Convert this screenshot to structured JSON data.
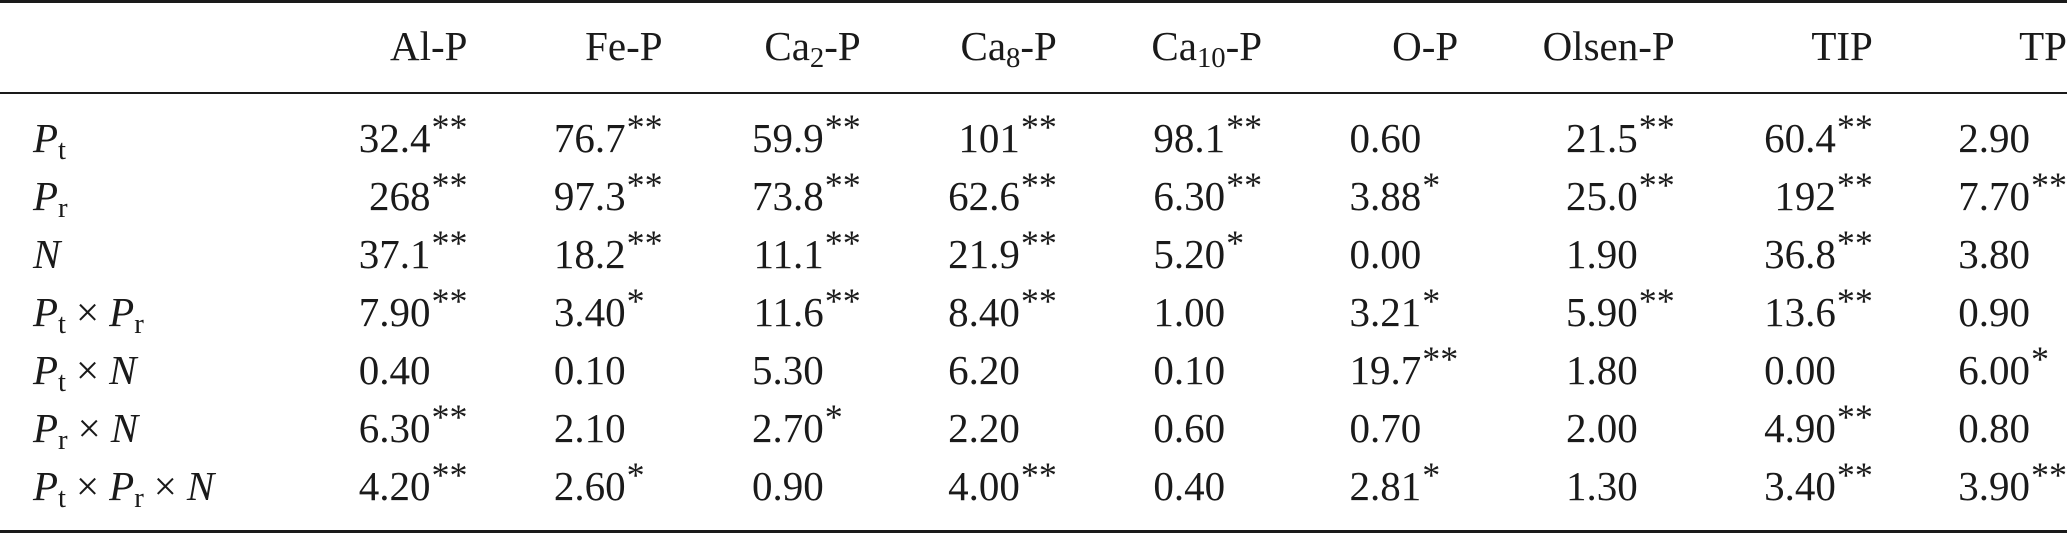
{
  "table": {
    "headers": [
      {
        "main": "Al-P",
        "sub": "",
        "tail": ""
      },
      {
        "main": "Fe-P",
        "sub": "",
        "tail": ""
      },
      {
        "main": "Ca",
        "sub": "2",
        "tail": "-P"
      },
      {
        "main": "Ca",
        "sub": "8",
        "tail": "-P"
      },
      {
        "main": "Ca",
        "sub": "10",
        "tail": "-P"
      },
      {
        "main": "O-P",
        "sub": "",
        "tail": ""
      },
      {
        "main": "Olsen-P",
        "sub": "",
        "tail": ""
      },
      {
        "main": "TIP",
        "sub": "",
        "tail": ""
      },
      {
        "main": "TP",
        "sub": "",
        "tail": ""
      }
    ],
    "rows": [
      {
        "label": [
          {
            "v": "P",
            "s": "t"
          }
        ],
        "cells": [
          {
            "v": "32.4",
            "sig": "**"
          },
          {
            "v": "76.7",
            "sig": "**"
          },
          {
            "v": "59.9",
            "sig": "**"
          },
          {
            "v": "101",
            "sig": "**"
          },
          {
            "v": "98.1",
            "sig": "**"
          },
          {
            "v": "0.60",
            "sig": ""
          },
          {
            "v": "21.5",
            "sig": "**"
          },
          {
            "v": "60.4",
            "sig": "**"
          },
          {
            "v": "2.90",
            "sig": ""
          }
        ]
      },
      {
        "label": [
          {
            "v": "P",
            "s": "r"
          }
        ],
        "cells": [
          {
            "v": "268",
            "sig": "**"
          },
          {
            "v": "97.3",
            "sig": "**"
          },
          {
            "v": "73.8",
            "sig": "**"
          },
          {
            "v": "62.6",
            "sig": "**"
          },
          {
            "v": "6.30",
            "sig": "**"
          },
          {
            "v": "3.88",
            "sig": "*"
          },
          {
            "v": "25.0",
            "sig": "**"
          },
          {
            "v": "192",
            "sig": "**"
          },
          {
            "v": "7.70",
            "sig": "**"
          }
        ]
      },
      {
        "label": [
          {
            "v": "N",
            "s": ""
          }
        ],
        "cells": [
          {
            "v": "37.1",
            "sig": "**"
          },
          {
            "v": "18.2",
            "sig": "**"
          },
          {
            "v": "11.1",
            "sig": "**"
          },
          {
            "v": "21.9",
            "sig": "**"
          },
          {
            "v": "5.20",
            "sig": "*"
          },
          {
            "v": "0.00",
            "sig": ""
          },
          {
            "v": "1.90",
            "sig": ""
          },
          {
            "v": "36.8",
            "sig": "**"
          },
          {
            "v": "3.80",
            "sig": ""
          }
        ]
      },
      {
        "label": [
          {
            "v": "P",
            "s": "t"
          },
          {
            "v": "P",
            "s": "r"
          }
        ],
        "cells": [
          {
            "v": "7.90",
            "sig": "**"
          },
          {
            "v": "3.40",
            "sig": "*"
          },
          {
            "v": "11.6",
            "sig": "**"
          },
          {
            "v": "8.40",
            "sig": "**"
          },
          {
            "v": "1.00",
            "sig": ""
          },
          {
            "v": "3.21",
            "sig": "*"
          },
          {
            "v": "5.90",
            "sig": "**"
          },
          {
            "v": "13.6",
            "sig": "**"
          },
          {
            "v": "0.90",
            "sig": ""
          }
        ]
      },
      {
        "label": [
          {
            "v": "P",
            "s": "t"
          },
          {
            "v": "N",
            "s": ""
          }
        ],
        "cells": [
          {
            "v": "0.40",
            "sig": ""
          },
          {
            "v": "0.10",
            "sig": ""
          },
          {
            "v": "5.30",
            "sig": ""
          },
          {
            "v": "6.20",
            "sig": ""
          },
          {
            "v": "0.10",
            "sig": ""
          },
          {
            "v": "19.7",
            "sig": "**"
          },
          {
            "v": "1.80",
            "sig": ""
          },
          {
            "v": "0.00",
            "sig": ""
          },
          {
            "v": "6.00",
            "sig": "*"
          }
        ]
      },
      {
        "label": [
          {
            "v": "P",
            "s": "r"
          },
          {
            "v": "N",
            "s": ""
          }
        ],
        "cells": [
          {
            "v": "6.30",
            "sig": "**"
          },
          {
            "v": "2.10",
            "sig": ""
          },
          {
            "v": "2.70",
            "sig": "*"
          },
          {
            "v": "2.20",
            "sig": ""
          },
          {
            "v": "0.60",
            "sig": ""
          },
          {
            "v": "0.70",
            "sig": ""
          },
          {
            "v": "2.00",
            "sig": ""
          },
          {
            "v": "4.90",
            "sig": "**"
          },
          {
            "v": "0.80",
            "sig": ""
          }
        ]
      },
      {
        "label": [
          {
            "v": "P",
            "s": "t"
          },
          {
            "v": "P",
            "s": "r"
          },
          {
            "v": "N",
            "s": ""
          }
        ],
        "cells": [
          {
            "v": "4.20",
            "sig": "**"
          },
          {
            "v": "2.60",
            "sig": "*"
          },
          {
            "v": "0.90",
            "sig": ""
          },
          {
            "v": "4.00",
            "sig": "**"
          },
          {
            "v": "0.40",
            "sig": ""
          },
          {
            "v": "2.81",
            "sig": "*"
          },
          {
            "v": "1.30",
            "sig": ""
          },
          {
            "v": "3.40",
            "sig": "**"
          },
          {
            "v": "3.90",
            "sig": "**"
          }
        ]
      }
    ],
    "times_symbol": "×"
  }
}
